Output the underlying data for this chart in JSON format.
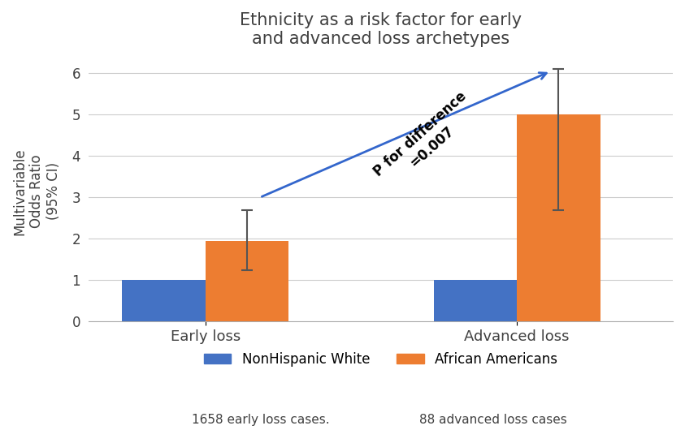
{
  "title": "Ethnicity as a risk factor for early\nand advanced loss archetypes",
  "ylabel": "Multivariable\nOdds Ratio\n(95% CI)",
  "categories": [
    "Early loss",
    "Advanced loss"
  ],
  "white_values": [
    1.0,
    1.0
  ],
  "aa_values": [
    1.95,
    5.0
  ],
  "aa_ci_lower": [
    1.25,
    2.7
  ],
  "aa_ci_upper": [
    2.7,
    6.1
  ],
  "ylim": [
    0,
    6.3
  ],
  "yticks": [
    0,
    1,
    2,
    3,
    4,
    5,
    6
  ],
  "bar_width": 0.32,
  "white_color": "#4472C4",
  "aa_color": "#ED7D31",
  "legend_white": "NonHispanic White",
  "legend_aa": "African Americans",
  "annotation_text": "P for difference\n=0.007",
  "footnote_early": "1658 early loss cases.",
  "footnote_advanced": "88 advanced loss cases",
  "background_color": "#FFFFFF",
  "grid_color": "#CCCCCC",
  "title_color": "#404040",
  "axis_label_color": "#404040",
  "tick_label_color": "#404040",
  "arrow_color": "#3366CC"
}
